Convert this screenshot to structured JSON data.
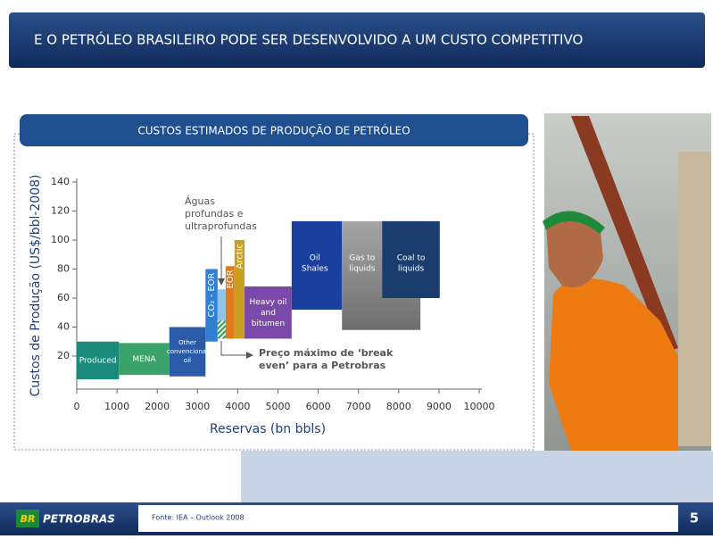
{
  "title": "E O PETRÓLEO BRASILEIRO PODE SER DESENVOLVIDO A UM CUSTO COMPETITIVO",
  "chart_data": {
    "type": "range-box",
    "title": "CUSTOS ESTIMADOS DE PRODUÇÃO DE PETRÓLEO",
    "ylabel": "Custos de Produção (US$/bbl-2008)",
    "xlabel": "Reservas (bn bbls)",
    "xlim": [
      0,
      10000
    ],
    "ylim": [
      0,
      140
    ],
    "xticks": [
      0,
      1000,
      2000,
      3000,
      4000,
      5000,
      6000,
      7000,
      8000,
      9000,
      10000
    ],
    "yticks": [
      20,
      40,
      60,
      80,
      100,
      120,
      140
    ],
    "boxes": [
      {
        "label": [
          "Produced"
        ],
        "color": "#1a8a7a",
        "x": [
          0,
          1050
        ],
        "y": [
          4,
          30
        ]
      },
      {
        "label": [
          "MENA"
        ],
        "color": "#3aa36a",
        "x": [
          1050,
          2300
        ],
        "y": [
          7,
          29
        ]
      },
      {
        "label": [
          "Other",
          "convencional",
          "oil"
        ],
        "color": "#2b5aa8",
        "x": [
          2300,
          3200
        ],
        "y": [
          6,
          40
        ]
      },
      {
        "label": [
          "CO₂ - EOR"
        ],
        "color": "#2f7fd4",
        "x": [
          3200,
          3500
        ],
        "y": [
          30,
          80
        ]
      },
      {
        "color": "#8fc3e8",
        "x": [
          3500,
          3700
        ],
        "y": [
          32,
          66
        ]
      },
      {
        "label": [
          "EOR"
        ],
        "color": "#e07a1a",
        "x": [
          3700,
          3920
        ],
        "y": [
          32,
          82
        ]
      },
      {
        "label": [
          "Arctic"
        ],
        "color": "#c9a020",
        "x": [
          3920,
          4170
        ],
        "y": [
          32,
          100
        ]
      },
      {
        "label": [
          "Heavy oil",
          "and",
          "bitumen"
        ],
        "color": "#7b4aa8",
        "x": [
          4170,
          5340
        ],
        "y": [
          32,
          68
        ]
      },
      {
        "label": [
          "Oil",
          "Shales"
        ],
        "color": "#1a3f9e",
        "x": [
          5340,
          6590
        ],
        "y": [
          52,
          113
        ]
      },
      {
        "label": [
          "Gas to",
          "liquids"
        ],
        "color": "#8a8a8a",
        "x": [
          6590,
          8540
        ],
        "y": [
          38,
          113
        ]
      },
      {
        "label": [
          "Coal to",
          "liquids"
        ],
        "color": "#1b3d6e",
        "x": [
          7590,
          9020
        ],
        "y": [
          60,
          113
        ]
      }
    ],
    "annotations": [
      {
        "text": [
          "Águas",
          "profundas e",
          "ultraprofundas"
        ]
      },
      {
        "text": [
          "Preço máximo de ‘break",
          "even’ para a Petrobras"
        ]
      }
    ]
  },
  "footer": {
    "source": "Fonte: IEA – Outlook 2008",
    "page": "5",
    "logo": "PETROBRAS",
    "logo_mark": "BR"
  }
}
